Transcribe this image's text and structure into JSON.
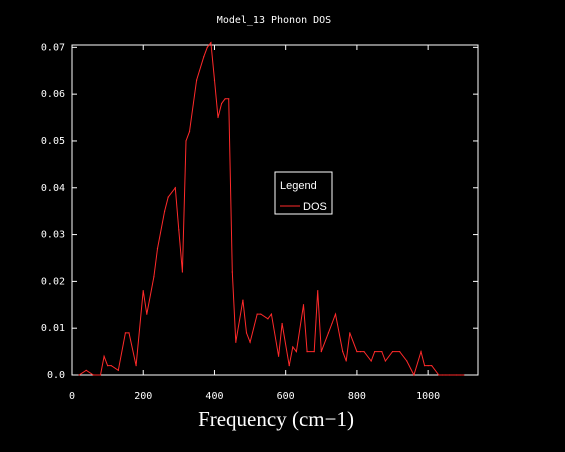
{
  "chart_data": {
    "type": "line",
    "title": "Model_13 Phonon DOS",
    "xlabel": "Frequency (cm−1)",
    "ylabel": "",
    "xlim": [
      0,
      1140
    ],
    "ylim": [
      0,
      0.0705
    ],
    "xticks": [
      0,
      200,
      400,
      600,
      800,
      1000
    ],
    "xtick_labels": [
      "0",
      "200",
      "400",
      "600",
      "800",
      "1000"
    ],
    "yticks": [
      0.0,
      0.01,
      0.02,
      0.03,
      0.04,
      0.05,
      0.06,
      0.07
    ],
    "ytick_labels": [
      "0.0",
      "0.01",
      "0.02",
      "0.03",
      "0.04",
      "0.05",
      "0.06",
      "0.07"
    ],
    "grid": false,
    "legend": {
      "title": "Legend",
      "placement": "center-right"
    },
    "series": [
      {
        "name": "DOS",
        "color": "#ff2a2a",
        "x": [
          20,
          40,
          60,
          80,
          90,
          100,
          110,
          130,
          150,
          160,
          180,
          200,
          210,
          230,
          240,
          260,
          270,
          290,
          300,
          310,
          320,
          330,
          350,
          370,
          380,
          390,
          400,
          410,
          420,
          430,
          440,
          450,
          460,
          480,
          490,
          500,
          520,
          530,
          550,
          560,
          580,
          590,
          610,
          620,
          630,
          650,
          660,
          680,
          690,
          700,
          720,
          730,
          740,
          760,
          770,
          780,
          800,
          810,
          820,
          840,
          850,
          870,
          880,
          900,
          920,
          940,
          960,
          980,
          990,
          1000,
          1010,
          1030,
          1040,
          1050,
          1060,
          1080,
          1090,
          1100
        ],
        "y": [
          0,
          0.001,
          0,
          0,
          0.004,
          0.002,
          0.002,
          0.001,
          0.009,
          0.009,
          0.002,
          0.018,
          0.013,
          0.021,
          0.027,
          0.035,
          0.038,
          0.04,
          0.031,
          0.022,
          0.05,
          0.052,
          0.063,
          0.068,
          0.07,
          0.071,
          0.063,
          0.055,
          0.058,
          0.059,
          0.059,
          0.022,
          0.007,
          0.016,
          0.009,
          0.007,
          0.013,
          0.013,
          0.012,
          0.013,
          0.004,
          0.011,
          0.002,
          0.006,
          0.005,
          0.015,
          0.005,
          0.005,
          0.018,
          0.005,
          0.009,
          0.011,
          0.013,
          0.005,
          0.003,
          0.009,
          0.005,
          0.005,
          0.005,
          0.003,
          0.005,
          0.005,
          0.003,
          0.005,
          0.005,
          0.003,
          0,
          0.005,
          0.002,
          0.002,
          0.002,
          0,
          0,
          0,
          0,
          0,
          0,
          0
        ]
      }
    ]
  }
}
